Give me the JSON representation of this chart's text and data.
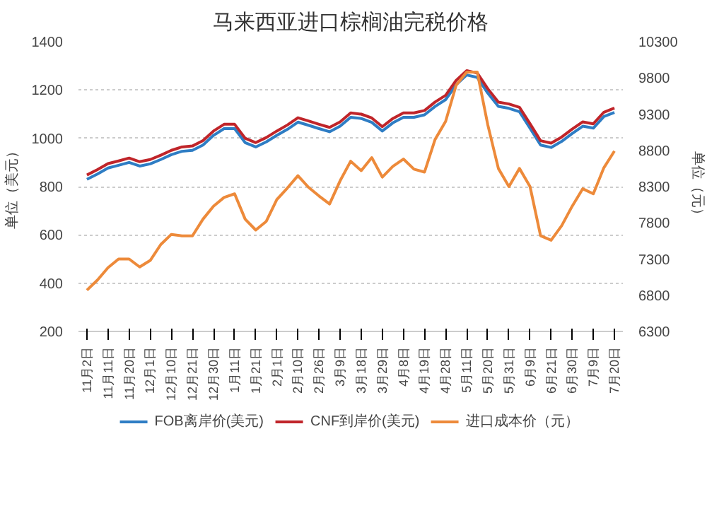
{
  "chart_data": {
    "type": "line",
    "title": "马来西亚进口棕榈油完税价格",
    "ylabel": "单位（美元）",
    "y2label": "单位（元）",
    "categories": [
      "11月2日",
      null,
      "11月11日",
      null,
      "11月20日",
      null,
      "12月1日",
      null,
      "12月10日",
      null,
      "12月21日",
      null,
      "12月30日",
      null,
      "1月11日",
      null,
      "1月21日",
      null,
      "2月1日",
      null,
      "2月10日",
      null,
      "2月26日",
      null,
      "3月9日",
      null,
      "3月18日",
      null,
      "3月29日",
      null,
      "4月8日",
      null,
      "4月19日",
      null,
      "4月28日",
      null,
      "5月11日",
      null,
      "5月20日",
      null,
      "5月31日",
      null,
      "6月9日",
      null,
      "6月21日",
      null,
      "6月30日",
      null,
      "7月9日",
      null,
      "7月20日"
    ],
    "series": [
      {
        "name": "FOB离岸价(美元)",
        "color": "#2e7dc4",
        "values": [
          830,
          852,
          877,
          888,
          900,
          885,
          894,
          912,
          932,
          946,
          950,
          972,
          1012,
          1040,
          1040,
          982,
          964,
          985,
          1012,
          1037,
          1067,
          1054,
          1040,
          1027,
          1050,
          1087,
          1082,
          1066,
          1030,
          1064,
          1087,
          1087,
          1097,
          1132,
          1160,
          1222,
          1262,
          1252,
          1187,
          1132,
          1124,
          1110,
          1042,
          972,
          962,
          987,
          1020,
          1050,
          1042,
          1090,
          1107
        ]
      },
      {
        "name": "CNF到岸价(美元)",
        "color": "#c0252a",
        "values": [
          848,
          870,
          895,
          906,
          918,
          903,
          912,
          930,
          950,
          964,
          968,
          990,
          1030,
          1058,
          1058,
          1000,
          982,
          1003,
          1030,
          1055,
          1085,
          1072,
          1058,
          1045,
          1068,
          1105,
          1100,
          1084,
          1048,
          1082,
          1105,
          1105,
          1115,
          1150,
          1178,
          1240,
          1280,
          1270,
          1205,
          1150,
          1142,
          1128,
          1060,
          990,
          980,
          1005,
          1038,
          1068,
          1060,
          1108,
          1125
        ]
      },
      {
        "name": "进口成本价（元）",
        "color": "#ed8a3a",
        "axis": "y2",
        "values": [
          6870,
          7010,
          7180,
          7300,
          7300,
          7190,
          7280,
          7500,
          7640,
          7620,
          7620,
          7850,
          8030,
          8150,
          8200,
          7850,
          7700,
          7820,
          8120,
          8280,
          8450,
          8290,
          8170,
          8060,
          8380,
          8650,
          8520,
          8700,
          8430,
          8580,
          8680,
          8540,
          8500,
          8950,
          9200,
          9700,
          9880,
          9880,
          9150,
          8550,
          8300,
          8550,
          8300,
          7620,
          7560,
          7760,
          8030,
          8270,
          8200,
          8560,
          8790
        ]
      }
    ],
    "ylim": [
      200,
      1400
    ],
    "yticks": [
      200,
      400,
      600,
      800,
      1000,
      1200,
      1400
    ],
    "y2lim": [
      6300,
      10300
    ],
    "y2ticks": [
      6300,
      6800,
      7300,
      7800,
      8300,
      8800,
      9300,
      9800,
      10300
    ],
    "grid": "y",
    "legend": "bottom",
    "marker": "none",
    "line_style": "solid"
  }
}
